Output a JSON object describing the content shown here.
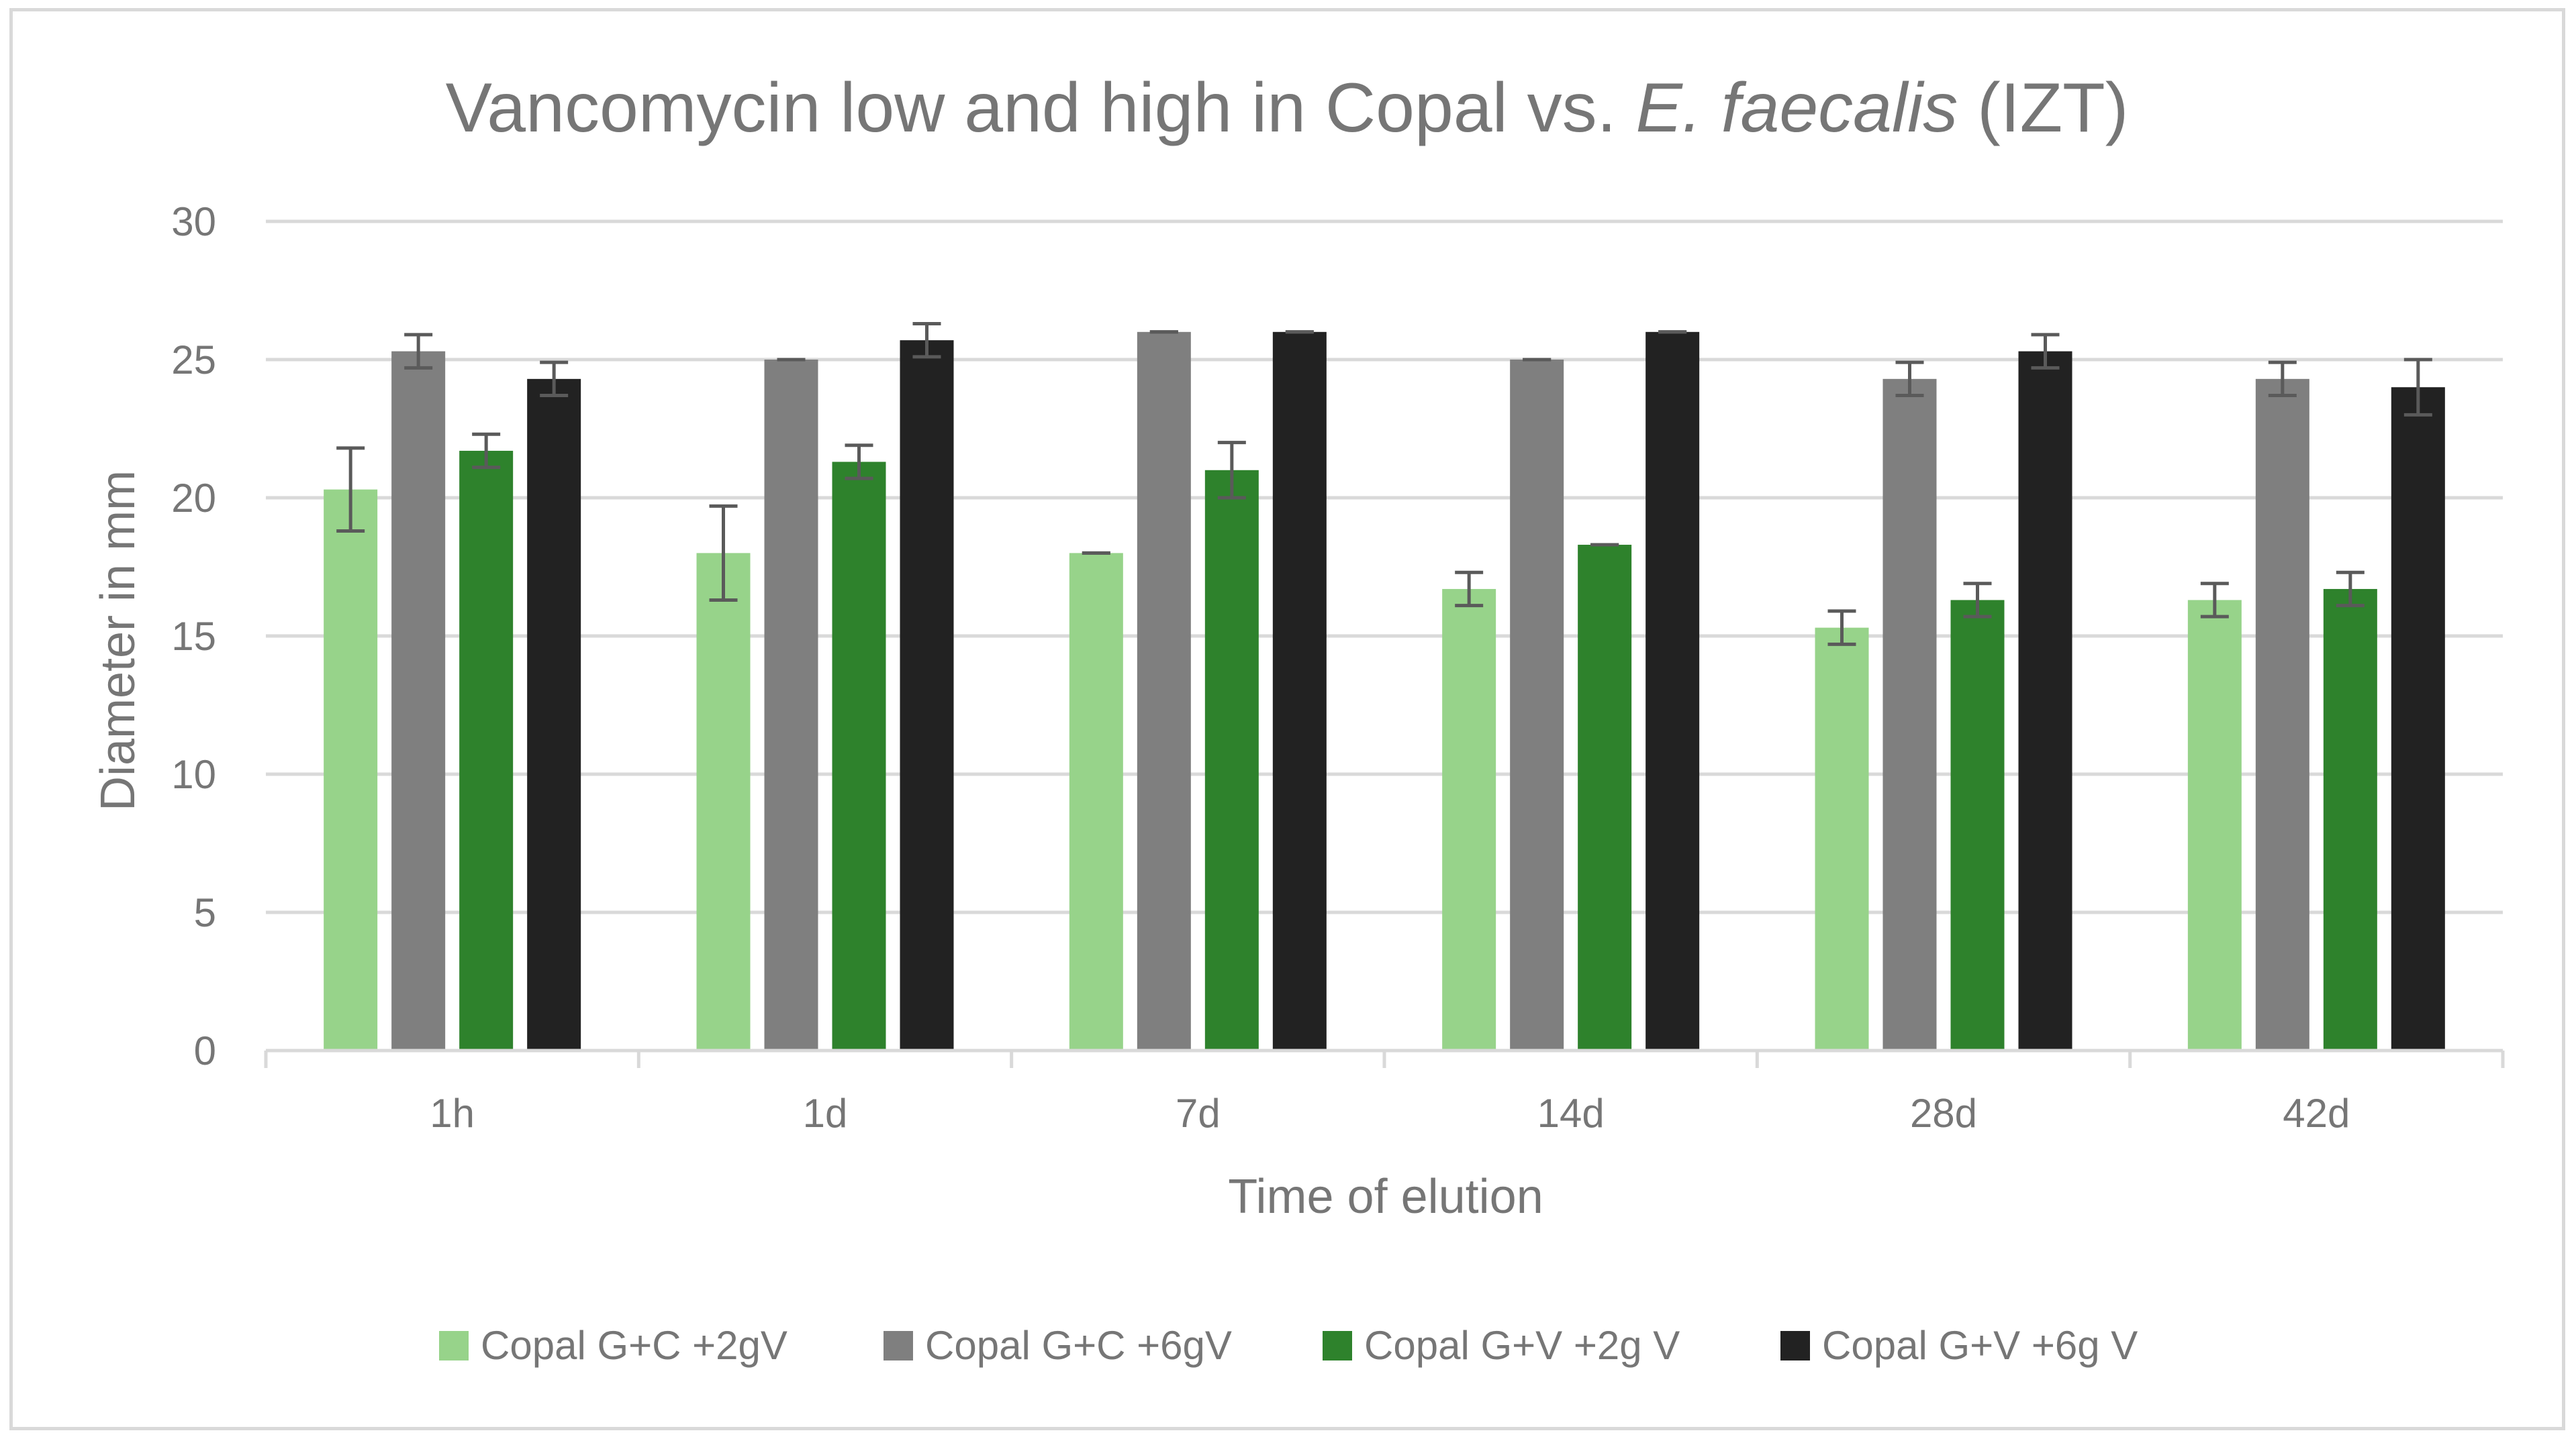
{
  "chart_data": {
    "type": "bar",
    "title_parts": {
      "prefix": "Vancomycin low and high in Copal vs. ",
      "italic": "E. faecalis",
      "suffix": " (IZT)"
    },
    "xlabel": "Time of elution",
    "ylabel": "Diameter in mm",
    "ylim": [
      0,
      30
    ],
    "yticks": [
      0,
      5,
      10,
      15,
      20,
      25,
      30
    ],
    "grid": true,
    "legend_position": "bottom",
    "categories": [
      "1h",
      "1d",
      "7d",
      "14d",
      "28d",
      "42d"
    ],
    "series": [
      {
        "name": "Copal G+C +2gV",
        "color": "#97d38a",
        "values": [
          20.3,
          18.0,
          18.0,
          16.7,
          15.3,
          16.3
        ],
        "errors": [
          1.5,
          1.7,
          0.0,
          0.6,
          0.6,
          0.6
        ]
      },
      {
        "name": "Copal G+C +6gV",
        "color": "#7f7f7f",
        "values": [
          25.3,
          25.0,
          26.0,
          25.0,
          24.3,
          24.3
        ],
        "errors": [
          0.6,
          0.0,
          0.0,
          0.0,
          0.6,
          0.6
        ]
      },
      {
        "name": "Copal G+V +2g V",
        "color": "#2e822c",
        "values": [
          21.7,
          21.3,
          21.0,
          18.3,
          16.3,
          16.7
        ],
        "errors": [
          0.6,
          0.6,
          1.0,
          0.0,
          0.6,
          0.6
        ]
      },
      {
        "name": "Copal G+V +6g V",
        "color": "#222222",
        "values": [
          24.3,
          25.7,
          26.0,
          26.0,
          25.3,
          24.0
        ],
        "errors": [
          0.6,
          0.6,
          0.0,
          0.0,
          0.6,
          1.0
        ]
      }
    ]
  }
}
